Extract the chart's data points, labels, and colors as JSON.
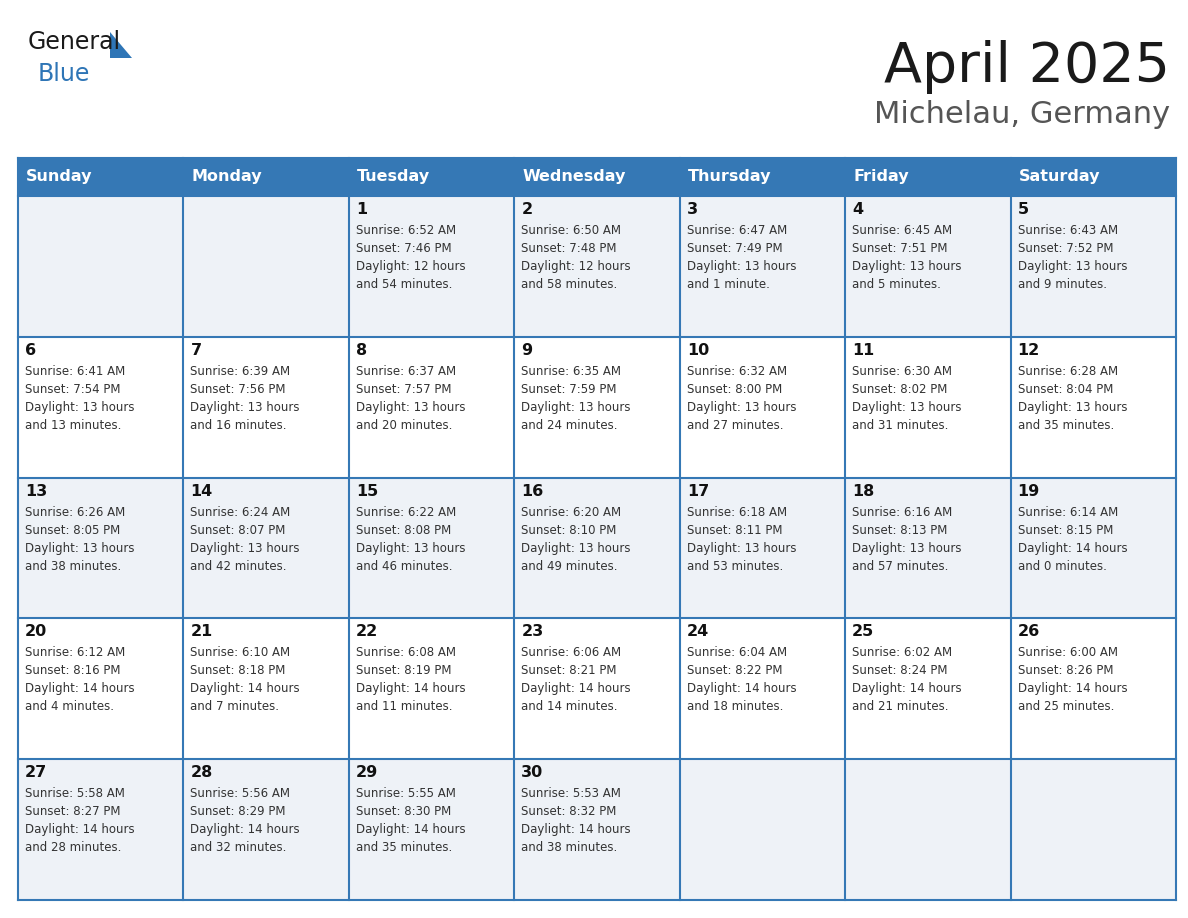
{
  "title": "April 2025",
  "subtitle": "Michelau, Germany",
  "days_of_week": [
    "Sunday",
    "Monday",
    "Tuesday",
    "Wednesday",
    "Thursday",
    "Friday",
    "Saturday"
  ],
  "header_bg": "#3578b5",
  "header_text": "#ffffff",
  "row_bg_odd": "#eef2f7",
  "row_bg_even": "#ffffff",
  "grid_line_color": "#3578b5",
  "cell_text_color": "#333333",
  "day_num_color": "#111111",
  "title_color": "#1a1a1a",
  "subtitle_color": "#555555",
  "logo_text_color": "#1a1a1a",
  "logo_blue_color": "#2e75b6",
  "weeks": [
    [
      {
        "day": "",
        "sunrise": "",
        "sunset": "",
        "daylight_line1": "",
        "daylight_line2": ""
      },
      {
        "day": "",
        "sunrise": "",
        "sunset": "",
        "daylight_line1": "",
        "daylight_line2": ""
      },
      {
        "day": "1",
        "sunrise": "6:52 AM",
        "sunset": "7:46 PM",
        "daylight_line1": "Daylight: 12 hours",
        "daylight_line2": "and 54 minutes."
      },
      {
        "day": "2",
        "sunrise": "6:50 AM",
        "sunset": "7:48 PM",
        "daylight_line1": "Daylight: 12 hours",
        "daylight_line2": "and 58 minutes."
      },
      {
        "day": "3",
        "sunrise": "6:47 AM",
        "sunset": "7:49 PM",
        "daylight_line1": "Daylight: 13 hours",
        "daylight_line2": "and 1 minute."
      },
      {
        "day": "4",
        "sunrise": "6:45 AM",
        "sunset": "7:51 PM",
        "daylight_line1": "Daylight: 13 hours",
        "daylight_line2": "and 5 minutes."
      },
      {
        "day": "5",
        "sunrise": "6:43 AM",
        "sunset": "7:52 PM",
        "daylight_line1": "Daylight: 13 hours",
        "daylight_line2": "and 9 minutes."
      }
    ],
    [
      {
        "day": "6",
        "sunrise": "6:41 AM",
        "sunset": "7:54 PM",
        "daylight_line1": "Daylight: 13 hours",
        "daylight_line2": "and 13 minutes."
      },
      {
        "day": "7",
        "sunrise": "6:39 AM",
        "sunset": "7:56 PM",
        "daylight_line1": "Daylight: 13 hours",
        "daylight_line2": "and 16 minutes."
      },
      {
        "day": "8",
        "sunrise": "6:37 AM",
        "sunset": "7:57 PM",
        "daylight_line1": "Daylight: 13 hours",
        "daylight_line2": "and 20 minutes."
      },
      {
        "day": "9",
        "sunrise": "6:35 AM",
        "sunset": "7:59 PM",
        "daylight_line1": "Daylight: 13 hours",
        "daylight_line2": "and 24 minutes."
      },
      {
        "day": "10",
        "sunrise": "6:32 AM",
        "sunset": "8:00 PM",
        "daylight_line1": "Daylight: 13 hours",
        "daylight_line2": "and 27 minutes."
      },
      {
        "day": "11",
        "sunrise": "6:30 AM",
        "sunset": "8:02 PM",
        "daylight_line1": "Daylight: 13 hours",
        "daylight_line2": "and 31 minutes."
      },
      {
        "day": "12",
        "sunrise": "6:28 AM",
        "sunset": "8:04 PM",
        "daylight_line1": "Daylight: 13 hours",
        "daylight_line2": "and 35 minutes."
      }
    ],
    [
      {
        "day": "13",
        "sunrise": "6:26 AM",
        "sunset": "8:05 PM",
        "daylight_line1": "Daylight: 13 hours",
        "daylight_line2": "and 38 minutes."
      },
      {
        "day": "14",
        "sunrise": "6:24 AM",
        "sunset": "8:07 PM",
        "daylight_line1": "Daylight: 13 hours",
        "daylight_line2": "and 42 minutes."
      },
      {
        "day": "15",
        "sunrise": "6:22 AM",
        "sunset": "8:08 PM",
        "daylight_line1": "Daylight: 13 hours",
        "daylight_line2": "and 46 minutes."
      },
      {
        "day": "16",
        "sunrise": "6:20 AM",
        "sunset": "8:10 PM",
        "daylight_line1": "Daylight: 13 hours",
        "daylight_line2": "and 49 minutes."
      },
      {
        "day": "17",
        "sunrise": "6:18 AM",
        "sunset": "8:11 PM",
        "daylight_line1": "Daylight: 13 hours",
        "daylight_line2": "and 53 minutes."
      },
      {
        "day": "18",
        "sunrise": "6:16 AM",
        "sunset": "8:13 PM",
        "daylight_line1": "Daylight: 13 hours",
        "daylight_line2": "and 57 minutes."
      },
      {
        "day": "19",
        "sunrise": "6:14 AM",
        "sunset": "8:15 PM",
        "daylight_line1": "Daylight: 14 hours",
        "daylight_line2": "and 0 minutes."
      }
    ],
    [
      {
        "day": "20",
        "sunrise": "6:12 AM",
        "sunset": "8:16 PM",
        "daylight_line1": "Daylight: 14 hours",
        "daylight_line2": "and 4 minutes."
      },
      {
        "day": "21",
        "sunrise": "6:10 AM",
        "sunset": "8:18 PM",
        "daylight_line1": "Daylight: 14 hours",
        "daylight_line2": "and 7 minutes."
      },
      {
        "day": "22",
        "sunrise": "6:08 AM",
        "sunset": "8:19 PM",
        "daylight_line1": "Daylight: 14 hours",
        "daylight_line2": "and 11 minutes."
      },
      {
        "day": "23",
        "sunrise": "6:06 AM",
        "sunset": "8:21 PM",
        "daylight_line1": "Daylight: 14 hours",
        "daylight_line2": "and 14 minutes."
      },
      {
        "day": "24",
        "sunrise": "6:04 AM",
        "sunset": "8:22 PM",
        "daylight_line1": "Daylight: 14 hours",
        "daylight_line2": "and 18 minutes."
      },
      {
        "day": "25",
        "sunrise": "6:02 AM",
        "sunset": "8:24 PM",
        "daylight_line1": "Daylight: 14 hours",
        "daylight_line2": "and 21 minutes."
      },
      {
        "day": "26",
        "sunrise": "6:00 AM",
        "sunset": "8:26 PM",
        "daylight_line1": "Daylight: 14 hours",
        "daylight_line2": "and 25 minutes."
      }
    ],
    [
      {
        "day": "27",
        "sunrise": "5:58 AM",
        "sunset": "8:27 PM",
        "daylight_line1": "Daylight: 14 hours",
        "daylight_line2": "and 28 minutes."
      },
      {
        "day": "28",
        "sunrise": "5:56 AM",
        "sunset": "8:29 PM",
        "daylight_line1": "Daylight: 14 hours",
        "daylight_line2": "and 32 minutes."
      },
      {
        "day": "29",
        "sunrise": "5:55 AM",
        "sunset": "8:30 PM",
        "daylight_line1": "Daylight: 14 hours",
        "daylight_line2": "and 35 minutes."
      },
      {
        "day": "30",
        "sunrise": "5:53 AM",
        "sunset": "8:32 PM",
        "daylight_line1": "Daylight: 14 hours",
        "daylight_line2": "and 38 minutes."
      },
      {
        "day": "",
        "sunrise": "",
        "sunset": "",
        "daylight_line1": "",
        "daylight_line2": ""
      },
      {
        "day": "",
        "sunrise": "",
        "sunset": "",
        "daylight_line1": "",
        "daylight_line2": ""
      },
      {
        "day": "",
        "sunrise": "",
        "sunset": "",
        "daylight_line1": "",
        "daylight_line2": ""
      }
    ]
  ],
  "figwidth": 11.88,
  "figheight": 9.18,
  "dpi": 100
}
